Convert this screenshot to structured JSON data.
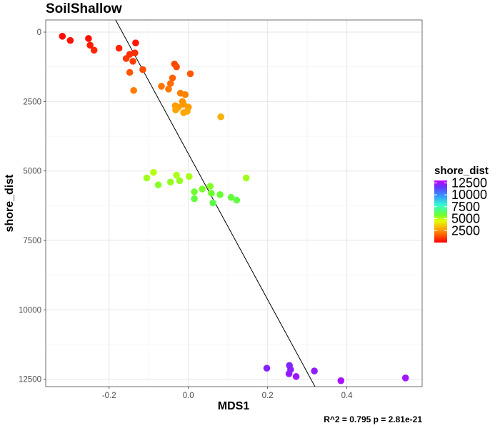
{
  "chart_data": {
    "type": "scatter",
    "title": "SoilShallow",
    "xlabel": "MDS1",
    "ylabel": "shore_dist",
    "xlim": [
      -0.36,
      0.59
    ],
    "ylim": [
      0,
      13200
    ],
    "y_reversed": true,
    "x_ticks": [
      -0.2,
      -0.0,
      0.2,
      0.4
    ],
    "x_tick_labels": [
      "-0.2",
      "0.0",
      "0.2",
      "0.4"
    ],
    "y_ticks": [
      0,
      2500,
      5000,
      7500,
      10000,
      12500
    ],
    "y_tick_labels": [
      "0",
      "2500",
      "5000",
      "7500",
      "10000",
      "12500"
    ],
    "grid": true,
    "color_by": "shore_dist",
    "legend": {
      "title": "shore_dist",
      "position": "right",
      "labels": [
        "12500",
        "10000",
        "7500",
        "5000",
        "2500"
      ],
      "label_values": [
        12500,
        10000,
        7500,
        5000,
        2500
      ],
      "range": [
        0,
        13000
      ]
    },
    "regression_line": {
      "x1": -0.186,
      "y1": -500,
      "x2": 0.34,
      "y2": 13300
    },
    "annotation": "R^2 =  0.795 p = 2.81e-21",
    "points": [
      {
        "x": -0.318,
        "y": 150
      },
      {
        "x": -0.298,
        "y": 300
      },
      {
        "x": -0.252,
        "y": 230
      },
      {
        "x": -0.248,
        "y": 470
      },
      {
        "x": -0.238,
        "y": 650
      },
      {
        "x": -0.175,
        "y": 580
      },
      {
        "x": -0.133,
        "y": 390
      },
      {
        "x": -0.157,
        "y": 950
      },
      {
        "x": -0.148,
        "y": 800
      },
      {
        "x": -0.135,
        "y": 750
      },
      {
        "x": -0.14,
        "y": 1050
      },
      {
        "x": -0.115,
        "y": 1350
      },
      {
        "x": -0.148,
        "y": 1450
      },
      {
        "x": -0.138,
        "y": 2100
      },
      {
        "x": -0.035,
        "y": 1150
      },
      {
        "x": -0.03,
        "y": 1250
      },
      {
        "x": 0.005,
        "y": 1500
      },
      {
        "x": -0.04,
        "y": 1650
      },
      {
        "x": -0.045,
        "y": 1850
      },
      {
        "x": -0.05,
        "y": 2050
      },
      {
        "x": -0.068,
        "y": 1950
      },
      {
        "x": -0.02,
        "y": 2200
      },
      {
        "x": -0.008,
        "y": 2250
      },
      {
        "x": -0.015,
        "y": 2500
      },
      {
        "x": -0.033,
        "y": 2650
      },
      {
        "x": -0.025,
        "y": 2700
      },
      {
        "x": -0.012,
        "y": 2600
      },
      {
        "x": 0.0,
        "y": 2700
      },
      {
        "x": -0.032,
        "y": 2800
      },
      {
        "x": -0.003,
        "y": 2850
      },
      {
        "x": -0.012,
        "y": 2900
      },
      {
        "x": 0.082,
        "y": 3050
      },
      {
        "x": -0.105,
        "y": 5250
      },
      {
        "x": -0.088,
        "y": 5050
      },
      {
        "x": -0.076,
        "y": 5500
      },
      {
        "x": -0.03,
        "y": 5150
      },
      {
        "x": -0.022,
        "y": 5350
      },
      {
        "x": 0.002,
        "y": 5200
      },
      {
        "x": -0.045,
        "y": 5400
      },
      {
        "x": 0.015,
        "y": 5750
      },
      {
        "x": 0.035,
        "y": 5650
      },
      {
        "x": 0.055,
        "y": 5550
      },
      {
        "x": 0.058,
        "y": 5800
      },
      {
        "x": 0.08,
        "y": 5850
      },
      {
        "x": 0.015,
        "y": 6000
      },
      {
        "x": 0.108,
        "y": 5950
      },
      {
        "x": 0.122,
        "y": 6050
      },
      {
        "x": 0.062,
        "y": 6150
      },
      {
        "x": 0.146,
        "y": 5250
      },
      {
        "x": 0.198,
        "y": 12100
      },
      {
        "x": 0.255,
        "y": 12000
      },
      {
        "x": 0.258,
        "y": 12150
      },
      {
        "x": 0.254,
        "y": 12300
      },
      {
        "x": 0.272,
        "y": 12400
      },
      {
        "x": 0.318,
        "y": 12200
      },
      {
        "x": 0.385,
        "y": 12550
      },
      {
        "x": 0.548,
        "y": 12450
      }
    ]
  }
}
